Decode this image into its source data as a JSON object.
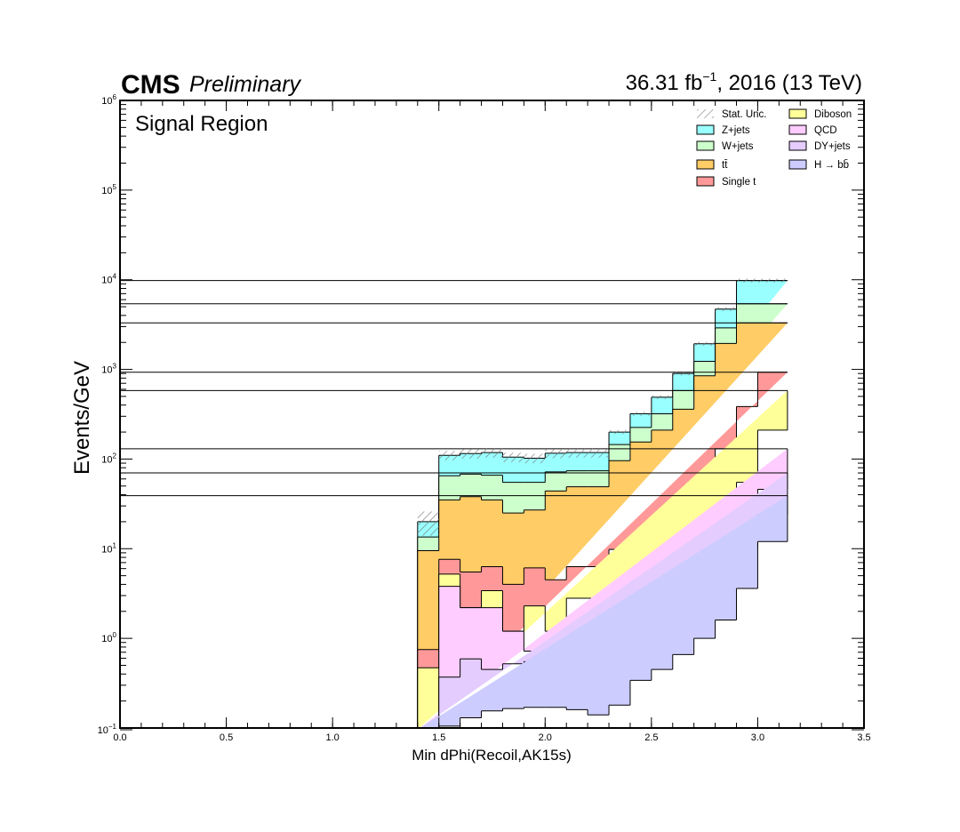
{
  "header": {
    "experiment": "CMS",
    "status": "Preliminary",
    "lumi": "36.31 fb",
    "lumi_exp": "−1",
    "lumi_rest": ", 2016 (13 TeV)"
  },
  "region_label": "Signal Region",
  "chart_data": {
    "type": "stacked-histogram",
    "xlabel": "Min dPhi(Recoil,AK15s)",
    "ylabel": "Events/GeV",
    "xlim": [
      0.0,
      3.5
    ],
    "ylim": [
      0.1,
      1000000
    ],
    "yscale": "log",
    "x_ticks": [
      "0.0",
      "0.5",
      "1.0",
      "1.5",
      "2.0",
      "2.5",
      "3.0",
      "3.5"
    ],
    "y_ticks": [
      {
        "base": "10",
        "exp": "−1"
      },
      {
        "base": "10",
        "exp": "0"
      },
      {
        "base": "10",
        "exp": "1"
      },
      {
        "base": "10",
        "exp": "2"
      },
      {
        "base": "10",
        "exp": "3"
      },
      {
        "base": "10",
        "exp": "4"
      },
      {
        "base": "10",
        "exp": "5"
      },
      {
        "base": "10",
        "exp": "6"
      }
    ],
    "bin_edges": [
      1.4,
      1.5,
      1.6,
      1.7,
      1.8,
      1.9,
      2.0,
      2.1,
      2.2,
      2.3,
      2.4,
      2.5,
      2.6,
      2.7,
      2.8,
      2.9,
      3.0,
      3.14
    ],
    "legend_position": "top-right",
    "stack_order_bottom_to_top": [
      "H → bb̄",
      "DY+jets",
      "QCD",
      "Diboson",
      "Single t",
      "tt̄",
      "W+jets",
      "Z+jets"
    ],
    "cumulative": [
      {
        "name": "H → bb̄",
        "color": "#ccccff",
        "values": [
          0,
          0.105,
          0.13,
          0.155,
          0.165,
          0.17,
          0.17,
          0.16,
          0.14,
          0.18,
          0.34,
          0.45,
          0.66,
          1.0,
          1.6,
          3.6,
          12,
          39
        ]
      },
      {
        "name": "DY+jets",
        "color": "#e4ccff",
        "values": [
          0,
          0.37,
          0.59,
          0.45,
          0.52,
          0.55,
          0.57,
          0.55,
          0.54,
          0.78,
          1.15,
          1.0,
          1.5,
          2.4,
          4.3,
          10,
          24,
          70
        ]
      },
      {
        "name": "QCD",
        "color": "#ffccff",
        "values": [
          0,
          3.8,
          2.2,
          2.2,
          1.2,
          0.72,
          0.72,
          0.65,
          0.78,
          0.78,
          2.9,
          3.4,
          2.8,
          3.9,
          6.0,
          10,
          46,
          130
        ]
      },
      {
        "name": "Diboson",
        "color": "#ffff99",
        "values": [
          0.47,
          5.2,
          2.2,
          3.4,
          1.2,
          2.3,
          1.2,
          2.8,
          2.8,
          3.0,
          5.2,
          5.6,
          9.0,
          14,
          28,
          55,
          210,
          580
        ]
      },
      {
        "name": "Single t",
        "color": "#ff9999",
        "values": [
          0.75,
          7.6,
          5.5,
          6.3,
          4.0,
          6.1,
          4.5,
          6.3,
          6.3,
          9.8,
          12,
          17,
          30,
          55,
          130,
          385,
          930,
          930
        ]
      },
      {
        "name": "tt̄",
        "color": "#ffcc66",
        "values": [
          9.5,
          35,
          38,
          35,
          25,
          27,
          44,
          49,
          49,
          96,
          155,
          210,
          360,
          850,
          1950,
          3300,
          3300,
          3300
        ]
      },
      {
        "name": "W+jets",
        "color": "#ccffcc",
        "values": [
          13.5,
          65,
          68,
          66,
          55,
          55,
          72,
          74,
          74,
          145,
          225,
          320,
          580,
          1230,
          2900,
          5400,
          5400,
          5400
        ]
      },
      {
        "name": "Z+jets",
        "color": "#99ffff",
        "values": [
          20,
          110,
          115,
          118,
          105,
          102,
          116,
          118,
          118,
          200,
          320,
          490,
          900,
          1930,
          4700,
          9800,
          9800,
          9800
        ]
      }
    ],
    "stat_unc_label": "Stat. Unc.",
    "legend": [
      {
        "label": "Stat. Unc.",
        "kind": "hatch"
      },
      {
        "label": "Diboson",
        "color": "#ffff99"
      },
      {
        "label": "Z+jets",
        "color": "#99ffff"
      },
      {
        "label": "QCD",
        "color": "#ffccff"
      },
      {
        "label": "W+jets",
        "color": "#ccffcc"
      },
      {
        "label": "DY+jets",
        "color": "#e4ccff"
      },
      {
        "label": "tt̄",
        "color": "#ffcc66"
      },
      {
        "label": "H → bb̄",
        "color": "#ccccff"
      },
      {
        "label": "Single t",
        "color": "#ff9999"
      }
    ]
  }
}
